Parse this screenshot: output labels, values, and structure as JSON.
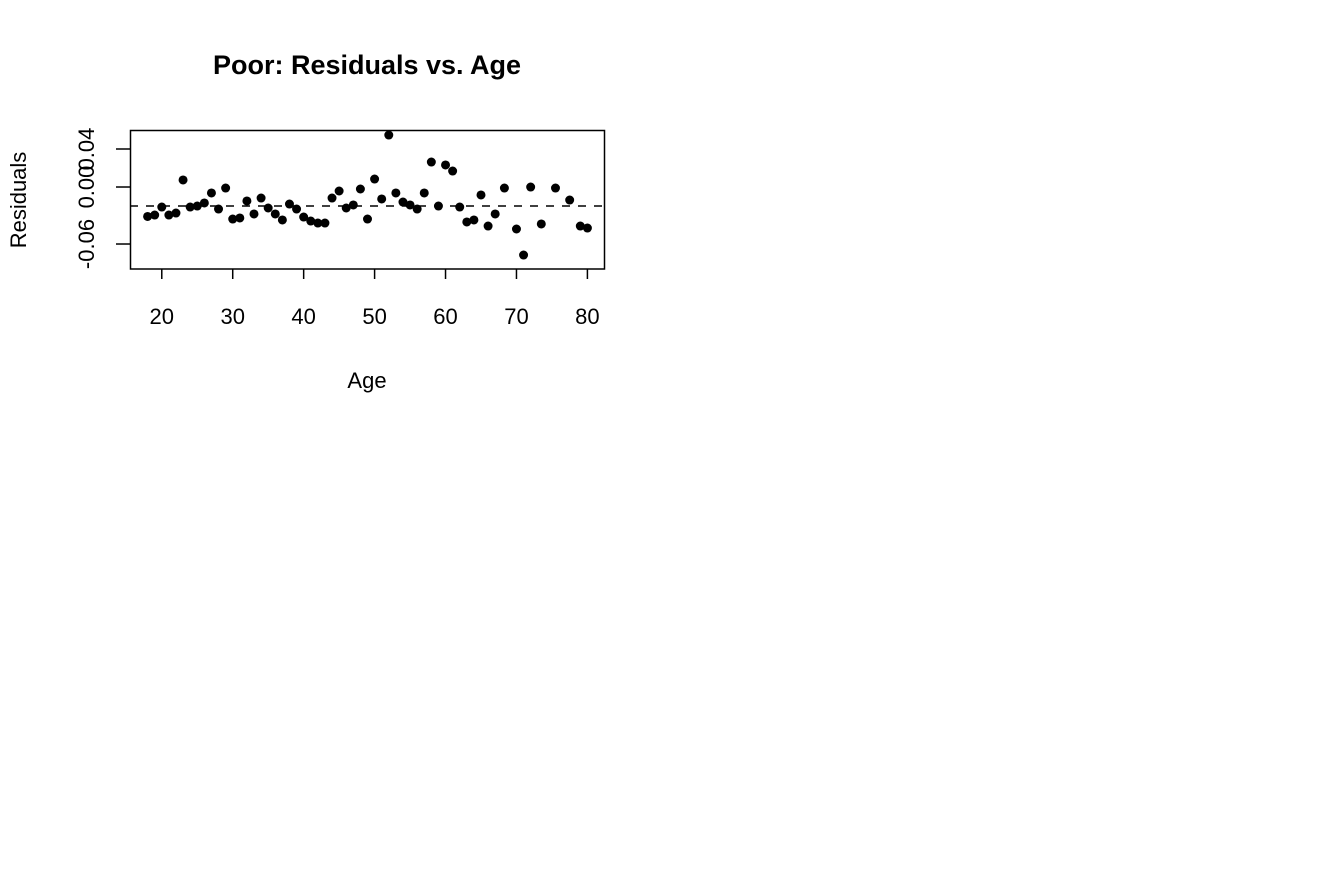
{
  "chart_data": {
    "type": "scatter",
    "title": "Poor: Residuals vs. Age",
    "x_label": "Age",
    "y_label": "Residuals",
    "x": [
      18,
      19,
      20,
      21,
      22,
      23,
      24,
      25,
      26,
      27,
      28,
      29,
      30,
      31,
      32,
      33,
      34,
      35,
      36,
      37,
      38,
      39,
      40,
      41,
      42,
      43,
      44,
      45,
      46,
      47,
      48,
      49,
      50,
      51,
      52,
      53,
      54,
      55,
      56,
      57,
      58,
      59,
      60,
      61,
      62,
      63,
      64,
      65,
      66,
      67,
      68.3,
      70,
      71,
      72,
      73.5,
      75.5,
      77.5,
      79,
      80
    ],
    "y": [
      -0.031,
      -0.0295,
      -0.0211,
      -0.0295,
      -0.0274,
      0.0074,
      -0.0211,
      -0.02,
      -0.0168,
      -0.0063,
      -0.0232,
      -0.0011,
      -0.0337,
      -0.0326,
      -0.0147,
      -0.0284,
      -0.0116,
      -0.0221,
      -0.0284,
      -0.0347,
      -0.0179,
      -0.0232,
      -0.0316,
      -0.0358,
      -0.0379,
      -0.0379,
      -0.0116,
      -0.0042,
      -0.0221,
      -0.0189,
      -0.0021,
      -0.0337,
      0.0084,
      -0.0126,
      0.0547,
      -0.0063,
      -0.0158,
      -0.0189,
      -0.0232,
      -0.0063,
      0.0263,
      -0.02,
      0.0232,
      0.0168,
      -0.0211,
      -0.0368,
      -0.0347,
      -0.0084,
      -0.0411,
      -0.0284,
      -0.0011,
      -0.0442,
      -0.0716,
      0,
      -0.0389,
      -0.0011,
      -0.0137,
      -0.0411,
      -0.0432
    ],
    "color": "#000000",
    "xlim": [
      15.52,
      82.48
    ],
    "xticks": [
      20,
      30,
      40,
      50,
      60,
      70,
      80
    ],
    "ylim": [
      -0.0863,
      0.06
    ],
    "yticks": [
      -0.06,
      {
        "value": 0,
        "label": "0.00"
      },
      0.04
    ],
    "hline": -0.02
  }
}
